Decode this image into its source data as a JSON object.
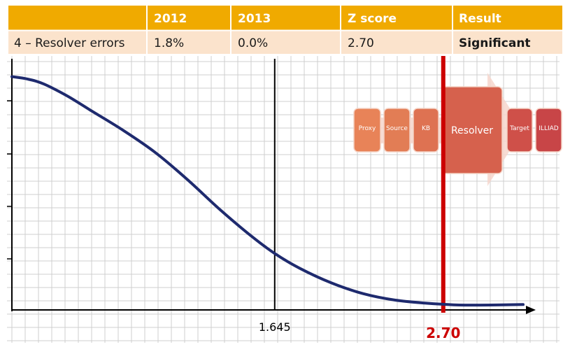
{
  "table": {
    "headers": [
      "",
      "2012",
      "2013",
      "Z score",
      "Result"
    ],
    "row": [
      "4 – Resolver errors",
      "1.8%",
      "0.0%",
      "2.70",
      "Significant"
    ],
    "header_bg": "#F0AA00",
    "row_bg": "#FBE3CC"
  },
  "chart_data": {
    "type": "line",
    "title": "",
    "xlabel": "",
    "ylabel": "",
    "xlim": [
      0,
      3.2
    ],
    "ylim": [
      0,
      1
    ],
    "series": [
      {
        "x": [
          0,
          0.1,
          0.2,
          0.35,
          0.5,
          0.7,
          0.9,
          1.1,
          1.3,
          1.5,
          1.645,
          1.8,
          2.0,
          2.2,
          2.4,
          2.6,
          2.7,
          2.8,
          3.0,
          3.2
        ],
        "y": [
          0.95,
          0.94,
          0.92,
          0.87,
          0.81,
          0.73,
          0.64,
          0.53,
          0.41,
          0.3,
          0.23,
          0.17,
          0.11,
          0.066,
          0.04,
          0.027,
          0.023,
          0.02,
          0.02,
          0.022
        ],
        "color": "#1E2A6E"
      }
    ],
    "reference_lines": [
      {
        "x": 1.645,
        "label": "1.645",
        "color": "#000000"
      },
      {
        "x": 2.7,
        "label": "2.70",
        "color": "#CC0000"
      }
    ],
    "grid": true
  },
  "flow": {
    "boxes": [
      "Proxy",
      "Source",
      "KB",
      "Resolver",
      "Target",
      "ILLIAD"
    ],
    "colors": [
      "#E88358",
      "#E27D55",
      "#DE7252",
      "#D6614D",
      "#CF5049",
      "#C84547"
    ],
    "arrow_color": "#F6D6CC"
  }
}
